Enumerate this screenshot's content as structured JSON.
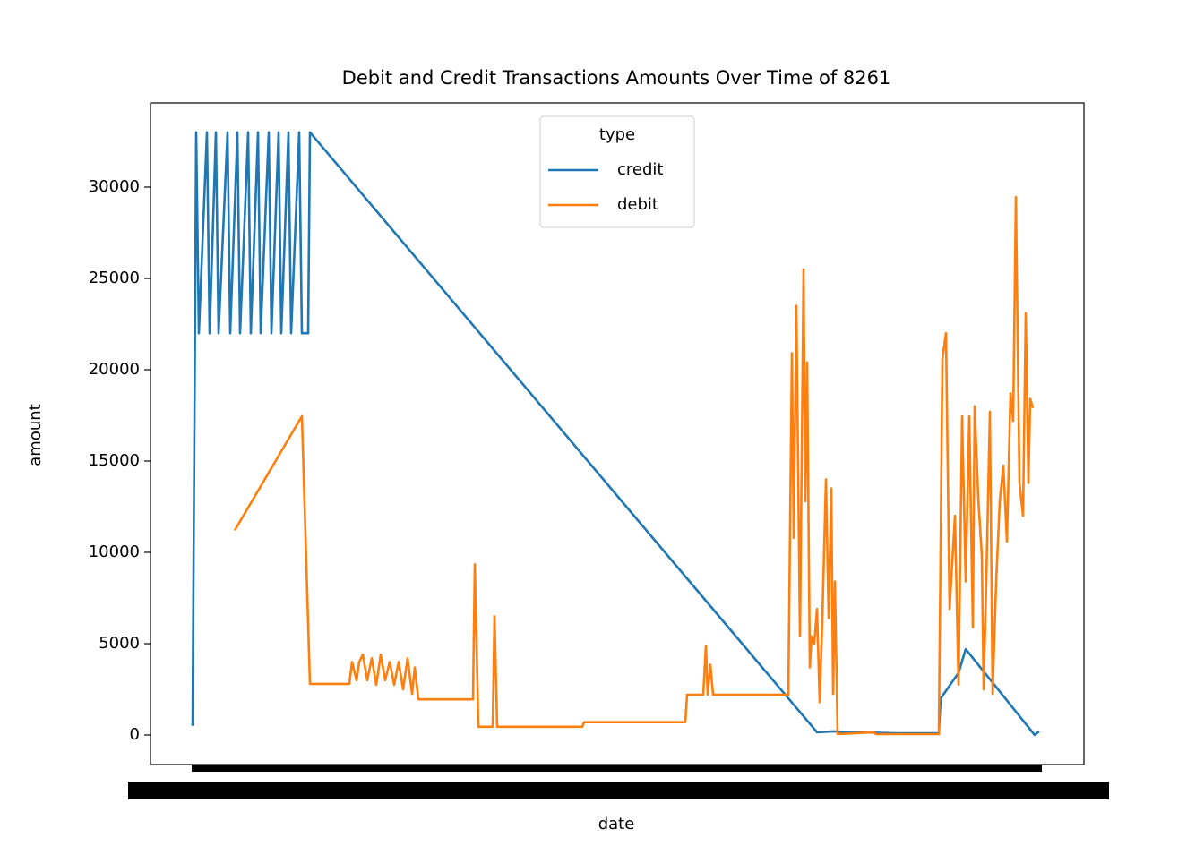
{
  "chart_data": {
    "type": "line",
    "title": "Debit and Credit Transactions Amounts Over Time of 8261",
    "x_label": "date",
    "y_label": "amount",
    "legend_title": "type",
    "legend": "upper center",
    "xlim": [
      -47,
      995
    ],
    "ylim": [
      -1618,
      34608
    ],
    "yticks": [
      0,
      5000,
      10000,
      15000,
      20000,
      25000,
      30000
    ],
    "series": [
      {
        "name": "credit",
        "color": "#1f77b4",
        "x": [
          0,
          4,
          7,
          16,
          19,
          26,
          29,
          39,
          42,
          50,
          53,
          62,
          65,
          73,
          76,
          85,
          88,
          96,
          99,
          107,
          110,
          119,
          122,
          129,
          131,
          697,
          715,
          745,
          785,
          833,
          835,
          855,
          863,
          940,
          945
        ],
        "values": [
          500,
          33000,
          22000,
          33000,
          22000,
          33000,
          22000,
          33000,
          22000,
          33000,
          22000,
          33000,
          22000,
          33000,
          22000,
          33000,
          22000,
          33000,
          22000,
          33000,
          22000,
          33000,
          22000,
          22000,
          33000,
          150,
          200,
          150,
          100,
          100,
          2000,
          3400,
          4700,
          0,
          200
        ]
      },
      {
        "name": "debit",
        "color": "#ff7f0e",
        "x": [
          47,
          122,
          131,
          175,
          178,
          183,
          186,
          190,
          195,
          200,
          205,
          210,
          215,
          220,
          225,
          230,
          235,
          240,
          245,
          248,
          252,
          313,
          315,
          319,
          335,
          337,
          340,
          435,
          437,
          550,
          552,
          570,
          573,
          575,
          578,
          581,
          665,
          669,
          671,
          674,
          678,
          682,
          684,
          686,
          689,
          691,
          694,
          697,
          700,
          703,
          707,
          710,
          713,
          715,
          717,
          720,
          760,
          763,
          833,
          837,
          841,
          845,
          851,
          855,
          859,
          863,
          867,
          871,
          873,
          877,
          881,
          883,
          886,
          890,
          893,
          897,
          901,
          905,
          909,
          913,
          916,
          919,
          923,
          927,
          930,
          933,
          935,
          938
        ],
        "values": [
          11200,
          17450,
          2800,
          2800,
          4000,
          3000,
          4000,
          4400,
          3000,
          4200,
          2750,
          4400,
          3000,
          4000,
          2750,
          4000,
          2500,
          4200,
          2250,
          3700,
          1950,
          1950,
          9350,
          450,
          450,
          6500,
          450,
          450,
          700,
          700,
          2200,
          2200,
          4900,
          2200,
          3850,
          2200,
          2200,
          20900,
          10800,
          23500,
          5400,
          25500,
          12800,
          20400,
          3700,
          5400,
          5000,
          6900,
          1800,
          6400,
          14000,
          6400,
          13500,
          2250,
          8400,
          50,
          150,
          50,
          50,
          20600,
          22000,
          6900,
          12000,
          2750,
          17450,
          8400,
          17450,
          5900,
          18000,
          13000,
          9800,
          2500,
          8400,
          17700,
          2250,
          8400,
          12800,
          14750,
          10600,
          18700,
          17200,
          29450,
          13800,
          12000,
          23100,
          13800,
          18400,
          17900
        ]
      }
    ]
  }
}
